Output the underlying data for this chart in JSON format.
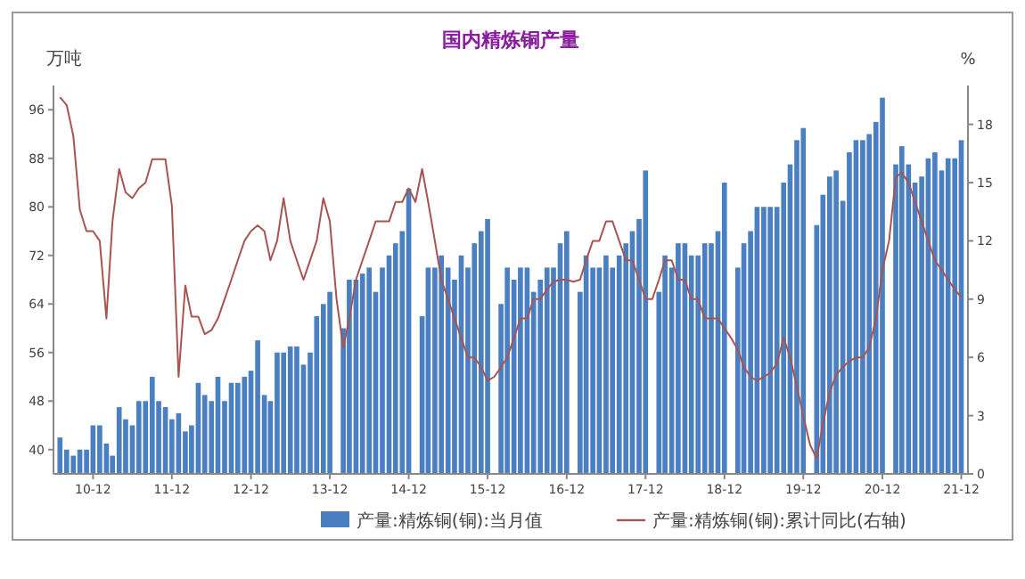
{
  "chart_data": {
    "type": "bar",
    "title": "国内精炼铜产量",
    "ylabel": "万吨",
    "y2label": "%",
    "legend": "bottom",
    "x": [
      "2010-07",
      "2010-08",
      "2010-09",
      "2010-10",
      "2010-11",
      "2010-12",
      "2011-01",
      "2011-02",
      "2011-03",
      "2011-04",
      "2011-05",
      "2011-06",
      "2011-07",
      "2011-08",
      "2011-09",
      "2011-10",
      "2011-11",
      "2011-12",
      "2012-01",
      "2012-02",
      "2012-03",
      "2012-04",
      "2012-05",
      "2012-06",
      "2012-07",
      "2012-08",
      "2012-09",
      "2012-10",
      "2012-11",
      "2012-12",
      "2013-01",
      "2013-02",
      "2013-03",
      "2013-04",
      "2013-05",
      "2013-06",
      "2013-07",
      "2013-08",
      "2013-09",
      "2013-10",
      "2013-11",
      "2013-12",
      "2014-01",
      "2014-02",
      "2014-03",
      "2014-04",
      "2014-05",
      "2014-06",
      "2014-07",
      "2014-08",
      "2014-09",
      "2014-10",
      "2014-11",
      "2014-12",
      "2015-01",
      "2015-02",
      "2015-03",
      "2015-04",
      "2015-05",
      "2015-06",
      "2015-07",
      "2015-08",
      "2015-09",
      "2015-10",
      "2015-11",
      "2015-12",
      "2016-01",
      "2016-02",
      "2016-03",
      "2016-04",
      "2016-05",
      "2016-06",
      "2016-07",
      "2016-08",
      "2016-09",
      "2016-10",
      "2016-11",
      "2016-12",
      "2017-01",
      "2017-02",
      "2017-03",
      "2017-04",
      "2017-05",
      "2017-06",
      "2017-07",
      "2017-08",
      "2017-09",
      "2017-10",
      "2017-11",
      "2017-12",
      "2018-01",
      "2018-02",
      "2018-03",
      "2018-04",
      "2018-05",
      "2018-06",
      "2018-07",
      "2018-08",
      "2018-09",
      "2018-10",
      "2018-11",
      "2018-12",
      "2019-01",
      "2019-02",
      "2019-03",
      "2019-04",
      "2019-05",
      "2019-06",
      "2019-07",
      "2019-08",
      "2019-09",
      "2019-10",
      "2019-11",
      "2019-12",
      "2020-01",
      "2020-02",
      "2020-03",
      "2020-04",
      "2020-05",
      "2020-06",
      "2020-07",
      "2020-08",
      "2020-09",
      "2020-10",
      "2020-11",
      "2020-12",
      "2021-01",
      "2021-02",
      "2021-03",
      "2021-04",
      "2021-05",
      "2021-06",
      "2021-07",
      "2021-08",
      "2021-09",
      "2021-10",
      "2021-11",
      "2021-12"
    ],
    "series": [
      {
        "name": "产量:精炼铜(铜):当月值",
        "color": "#4a7fc1",
        "values": [
          42,
          40,
          39,
          40,
          40,
          44,
          44,
          41,
          39,
          47,
          45,
          44,
          48,
          48,
          52,
          48,
          47,
          45,
          46,
          43,
          44,
          51,
          49,
          48,
          52,
          48,
          51,
          51,
          52,
          53,
          58,
          49,
          48,
          56,
          56,
          57,
          57,
          54,
          56,
          62,
          64,
          66,
          null,
          60,
          68,
          68,
          69,
          70,
          66,
          70,
          72,
          74,
          76,
          83,
          null,
          62,
          70,
          70,
          72,
          70,
          68,
          72,
          70,
          74,
          76,
          78,
          null,
          64,
          70,
          68,
          70,
          70,
          66,
          68,
          70,
          70,
          74,
          76,
          null,
          66,
          72,
          70,
          70,
          72,
          70,
          72,
          74,
          76,
          78,
          86,
          null,
          66,
          72,
          70,
          74,
          74,
          72,
          72,
          74,
          74,
          76,
          84,
          null,
          70,
          74,
          76,
          80,
          80,
          80,
          80,
          84,
          87,
          91,
          93,
          null,
          77,
          82,
          85,
          86,
          81,
          89,
          91,
          91,
          92,
          94,
          98,
          null,
          87,
          90,
          87,
          84,
          85,
          88,
          89,
          86,
          88,
          88,
          91
        ]
      },
      {
        "name": "产量:精炼铜(铜):累计同比(右轴)",
        "type": "line",
        "axis": "y2",
        "color": "#a85450",
        "values": [
          19.4,
          19,
          17.4,
          13.6,
          12.5,
          12.5,
          12,
          8,
          13,
          15.7,
          14.5,
          14.2,
          14.7,
          15,
          16.2,
          16.2,
          16.2,
          13.8,
          5,
          9.7,
          8.1,
          8.1,
          7.2,
          7.4,
          8,
          9,
          10,
          11,
          12,
          12.5,
          12.8,
          12.5,
          11,
          12,
          14.2,
          12,
          11,
          10,
          11,
          12,
          14.2,
          13,
          9,
          6.5,
          8,
          10,
          11,
          12,
          13,
          13,
          13,
          14,
          14,
          14.7,
          14,
          15.7,
          14,
          12,
          10,
          9,
          8,
          7,
          6,
          6,
          5.5,
          4.8,
          5,
          5.5,
          6,
          7,
          8,
          8,
          9,
          9,
          9.5,
          9.9,
          10,
          10,
          9.9,
          10,
          11,
          12,
          12,
          13,
          13,
          12,
          11,
          11,
          10,
          9,
          9,
          10,
          11,
          11,
          10,
          10,
          9,
          9,
          8,
          8,
          8,
          7.5,
          7,
          6.4,
          5.5,
          5,
          4.8,
          5,
          5.2,
          5.7,
          7,
          6,
          4.5,
          3,
          1.5,
          0.8,
          2.6,
          4.2,
          5.1,
          5.5,
          5.8,
          6,
          6,
          6.5,
          8,
          10.5,
          12,
          15.3,
          15.5,
          15,
          14,
          13,
          12,
          11,
          10.5,
          10,
          9.5,
          9.1
        ]
      }
    ],
    "xlim": [
      "2010-06",
      "2022-01"
    ],
    "xticks": [
      {
        "value": "2010-12",
        "label": "10-12"
      },
      {
        "value": "2011-12",
        "label": "11-12"
      },
      {
        "value": "2012-12",
        "label": "12-12"
      },
      {
        "value": "2013-12",
        "label": "13-12"
      },
      {
        "value": "2014-12",
        "label": "14-12"
      },
      {
        "value": "2015-12",
        "label": "15-12"
      },
      {
        "value": "2016-12",
        "label": "16-12"
      },
      {
        "value": "2017-12",
        "label": "17-12"
      },
      {
        "value": "2018-12",
        "label": "18-12"
      },
      {
        "value": "2019-12",
        "label": "19-12"
      },
      {
        "value": "2020-12",
        "label": "20-12"
      },
      {
        "value": "2021-12",
        "label": "21-12"
      }
    ],
    "ylim": [
      36,
      100
    ],
    "yticks": [
      40,
      48,
      56,
      64,
      72,
      80,
      88,
      96
    ],
    "y2lim": [
      0,
      20
    ],
    "y2ticks": [
      0,
      3,
      6,
      9,
      12,
      15,
      18
    ]
  }
}
